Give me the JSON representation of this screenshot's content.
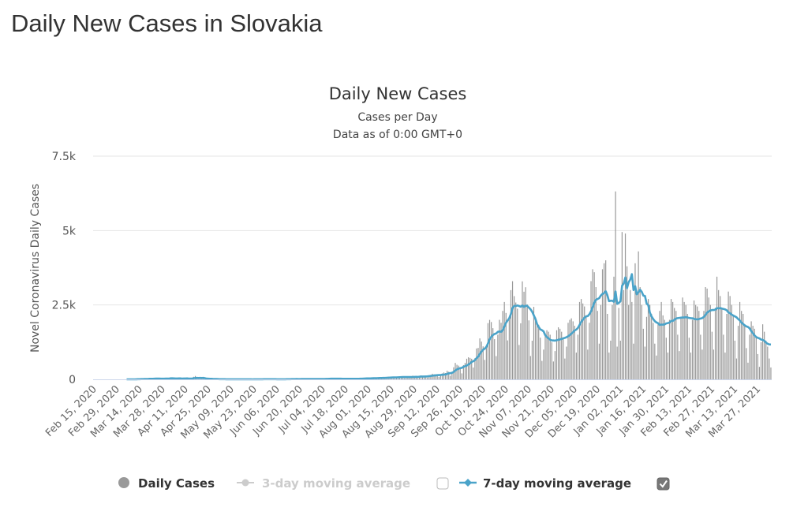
{
  "page": {
    "heading": "Daily New Cases in Slovakia"
  },
  "chart_data": {
    "type": "bar",
    "title": "Daily New Cases",
    "subtitle": "Cases per Day",
    "subtitle2": "Data as of 0:00 GMT+0",
    "ylabel": "Novel Coronavirus Daily Cases",
    "xlabel": "",
    "ylim": [
      0,
      7500
    ],
    "yticks": [
      {
        "value": 0,
        "label": "0"
      },
      {
        "value": 2500,
        "label": "2.5k"
      },
      {
        "value": 5000,
        "label": "5k"
      },
      {
        "value": 7500,
        "label": "7.5k"
      }
    ],
    "grid": true,
    "x_start": "2020-02-15",
    "x_end": "2021-04-04",
    "x_tick_interval_days": 14,
    "x_tick_labels": [
      "Feb 15, 2020",
      "Feb 29, 2020",
      "Mar 14, 2020",
      "Mar 28, 2020",
      "Apr 11, 2020",
      "Apr 25, 2020",
      "May 09, 2020",
      "May 23, 2020",
      "Jun 06, 2020",
      "Jun 20, 2020",
      "Jul 04, 2020",
      "Jul 18, 2020",
      "Aug 01, 2020",
      "Aug 15, 2020",
      "Aug 29, 2020",
      "Sep 12, 2020",
      "Sep 26, 2020",
      "Oct 10, 2020",
      "Oct 24, 2020",
      "Nov 07, 2020",
      "Nov 21, 2020",
      "Dec 05, 2020",
      "Dec 19, 2020",
      "Jan 02, 2021",
      "Jan 16, 2021",
      "Jan 30, 2021",
      "Feb 13, 2021",
      "Feb 27, 2021",
      "Mar 13, 2021",
      "Mar 27, 2021"
    ],
    "series": [
      {
        "name": "Daily Cases",
        "type": "bar",
        "color": "#999999",
        "values": [
          0,
          0,
          0,
          0,
          0,
          0,
          0,
          0,
          0,
          0,
          0,
          0,
          0,
          0,
          0,
          0,
          0,
          0,
          0,
          0,
          1,
          2,
          2,
          0,
          0,
          3,
          8,
          14,
          19,
          11,
          9,
          25,
          8,
          14,
          48,
          14,
          19,
          18,
          43,
          12,
          13,
          24,
          23,
          22,
          49,
          37,
          24,
          59,
          21,
          14,
          5,
          51,
          52,
          14,
          19,
          44,
          27,
          21,
          5,
          52,
          18,
          85,
          113,
          41,
          7,
          13,
          45,
          38,
          8,
          21,
          12,
          2,
          6,
          11,
          10,
          3,
          5,
          2,
          0,
          5,
          3,
          4,
          4,
          6,
          4,
          1,
          2,
          1,
          3,
          0,
          3,
          2,
          0,
          1,
          3,
          2,
          1,
          0,
          3,
          0,
          4,
          1,
          5,
          7,
          8,
          10,
          2,
          6,
          3,
          7,
          1,
          2,
          6,
          0,
          2,
          4,
          3,
          5,
          17,
          9,
          3,
          12,
          8,
          6,
          10,
          11,
          14,
          5,
          14,
          12,
          9,
          22,
          16,
          19,
          4,
          8,
          19,
          10,
          14,
          24,
          16,
          8,
          23,
          21,
          18,
          33,
          27,
          18,
          7,
          19,
          20,
          17,
          26,
          29,
          21,
          6,
          15,
          22,
          16,
          20,
          31,
          26,
          9,
          24,
          31,
          37,
          41,
          47,
          35,
          12,
          29,
          54,
          48,
          61,
          59,
          48,
          20,
          41,
          66,
          73,
          88,
          80,
          62,
          30,
          58,
          79,
          92,
          104,
          99,
          75,
          38,
          53,
          90,
          82,
          103,
          123,
          89,
          55,
          41,
          116,
          132,
          118,
          123,
          110,
          60,
          109,
          151,
          188,
          167,
          170,
          134,
          78,
          135,
          200,
          230,
          212,
          290,
          256,
          124,
          232,
          406,
          552,
          489,
          461,
          365,
          201,
          478,
          552,
          693,
          740,
          720,
          692,
          396,
          711,
          1037,
          1056,
          1376,
          1268,
          1107,
          653,
          1138,
          1889,
          1997,
          1926,
          1720,
          1350,
          780,
          1500,
          2000,
          1900,
          2300,
          2600,
          2232,
          1309,
          2035,
          2998,
          3298,
          2796,
          2582,
          2373,
          1155,
          1883,
          3292,
          2944,
          3095,
          2520,
          1981,
          784,
          1299,
          2437,
          2090,
          1899,
          1832,
          1400,
          620,
          1000,
          1550,
          1650,
          1600,
          1500,
          1250,
          600,
          950,
          1650,
          1750,
          1700,
          1600,
          1400,
          700,
          1100,
          1900,
          2000,
          2050,
          1950,
          1800,
          900,
          1500,
          2600,
          2700,
          2550,
          2450,
          2100,
          1000,
          1900,
          3300,
          3700,
          3600,
          3100,
          2300,
          1200,
          2500,
          3700,
          3900,
          4000,
          2200,
          900,
          1300,
          2500,
          3450,
          6315,
          1100,
          2400,
          1300,
          4950,
          3000,
          4900,
          3800,
          2500,
          3000,
          2600,
          1200,
          3900,
          3000,
          4300,
          3100,
          2500,
          1700,
          1100,
          2100,
          2700,
          2500,
          2200,
          1900,
          1200,
          800,
          1900,
          2300,
          2600,
          2150,
          2000,
          1400,
          900,
          2000,
          2700,
          2600,
          2400,
          2300,
          1500,
          950,
          2050,
          2750,
          2600,
          2500,
          2200,
          1400,
          900,
          2000,
          2650,
          2500,
          2450,
          2300,
          1500,
          1000,
          2300,
          3100,
          3050,
          2750,
          2500,
          1600,
          1000,
          2400,
          3450,
          3000,
          2800,
          2400,
          1500,
          900,
          2200,
          2950,
          2800,
          2500,
          2150,
          1300,
          700,
          1800,
          2600,
          2300,
          2200,
          1800,
          1050,
          560,
          1500,
          1950,
          1800,
          1700,
          1400,
          850,
          420,
          1250,
          1850,
          1600,
          1300,
          1100,
          700,
          400
        ]
      },
      {
        "name": "3-day moving average",
        "type": "line",
        "visible": false,
        "color": "#cccccc"
      },
      {
        "name": "7-day moving average",
        "type": "line",
        "visible": true,
        "color": "#4aa3c9",
        "window_days": 7
      }
    ],
    "legend": {
      "placement": "bottom",
      "items": [
        {
          "label": "Daily Cases",
          "checkbox": false
        },
        {
          "label": "3-day moving average",
          "checkbox": true,
          "checked": false
        },
        {
          "label": "7-day moving average",
          "checkbox": true,
          "checked": true
        }
      ]
    }
  }
}
